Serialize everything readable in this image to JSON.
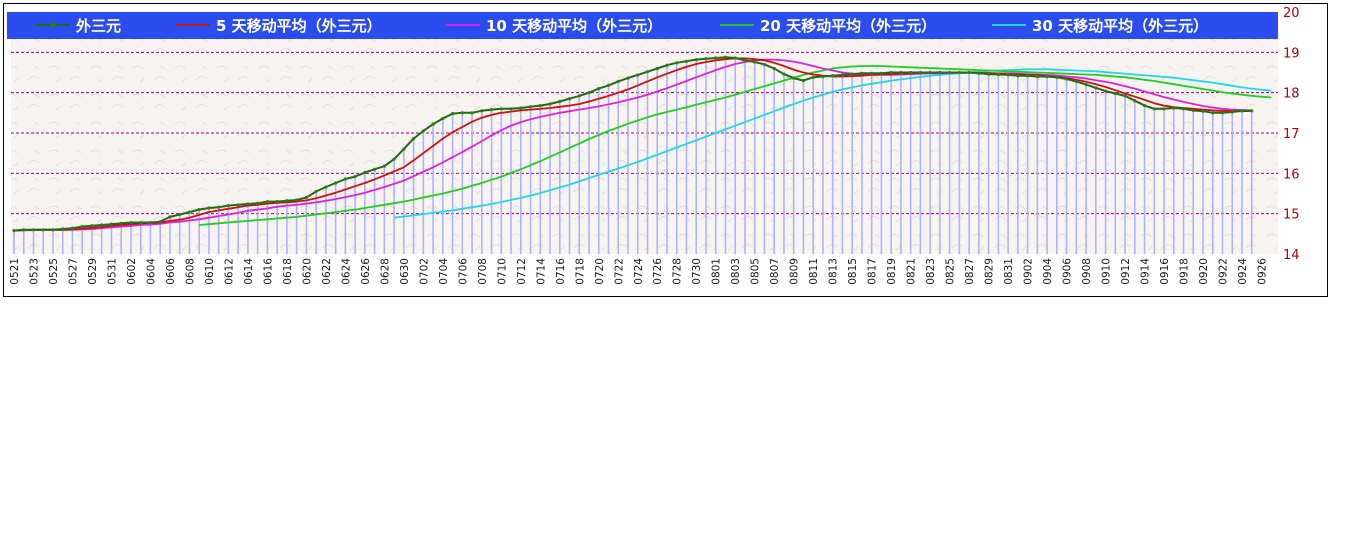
{
  "chart_data": {
    "type": "line",
    "title": "",
    "xlabel": "",
    "ylabel": "",
    "ylim": [
      14,
      20
    ],
    "yticks": [
      14,
      15,
      16,
      17,
      18,
      19,
      20
    ],
    "grid": "horizontal dashed",
    "legend_placement": "top",
    "y_axis_side": "right",
    "x_tick_labels": [
      "0521",
      "0523",
      "0525",
      "0527",
      "0529",
      "0531",
      "0602",
      "0604",
      "0606",
      "0608",
      "0610",
      "0612",
      "0614",
      "0616",
      "0618",
      "0620",
      "0622",
      "0624",
      "0626",
      "0628",
      "0630",
      "0702",
      "0704",
      "0706",
      "0708",
      "0710",
      "0712",
      "0714",
      "0716",
      "0718",
      "0720",
      "0722",
      "0724",
      "0726",
      "0728",
      "0730",
      "0801",
      "0803",
      "0805",
      "0807",
      "0809",
      "0811",
      "0813",
      "0815",
      "0817",
      "0819",
      "0821",
      "0823",
      "0825",
      "0827",
      "0829",
      "0831",
      "0902",
      "0904",
      "0906",
      "0908",
      "0910",
      "0912",
      "0914",
      "0916",
      "0918",
      "0920",
      "0922",
      "0924",
      "0926"
    ],
    "x_points_per_label": 2,
    "colors": {
      "legend_bg": "#2b4df0",
      "grid": "#990099",
      "bars": "#aeb4f2",
      "ytick": "#b30000",
      "markers": "#2e7d14"
    },
    "series": [
      {
        "name": "外三元",
        "color": "#1f6b12",
        "start": 0,
        "values": [
          14.58,
          14.6,
          14.6,
          14.6,
          14.6,
          14.62,
          14.64,
          14.68,
          14.7,
          14.72,
          14.74,
          14.76,
          14.78,
          14.78,
          14.78,
          14.8,
          14.92,
          14.98,
          15.04,
          15.1,
          15.14,
          15.16,
          15.2,
          15.22,
          15.24,
          15.26,
          15.3,
          15.3,
          15.32,
          15.34,
          15.4,
          15.55,
          15.66,
          15.76,
          15.86,
          15.92,
          16.02,
          16.1,
          16.18,
          16.35,
          16.6,
          16.86,
          17.05,
          17.22,
          17.36,
          17.48,
          17.5,
          17.5,
          17.55,
          17.58,
          17.6,
          17.6,
          17.62,
          17.65,
          17.68,
          17.72,
          17.78,
          17.85,
          17.92,
          18.0,
          18.1,
          18.18,
          18.28,
          18.36,
          18.44,
          18.52,
          18.6,
          18.68,
          18.74,
          18.78,
          18.82,
          18.84,
          18.86,
          18.88,
          18.86,
          18.8,
          18.76,
          18.7,
          18.6,
          18.46,
          18.36,
          18.3,
          18.38,
          18.4,
          18.42,
          18.44,
          18.46,
          18.48,
          18.48,
          18.48,
          18.5,
          18.5,
          18.5,
          18.5,
          18.5,
          18.5,
          18.5,
          18.5,
          18.5,
          18.48,
          18.46,
          18.45,
          18.44,
          18.42,
          18.42,
          18.4,
          18.4,
          18.38,
          18.34,
          18.28,
          18.2,
          18.12,
          18.04,
          17.98,
          17.92,
          17.8,
          17.68,
          17.6,
          17.6,
          17.62,
          17.6,
          17.56,
          17.54,
          17.5,
          17.5,
          17.52,
          17.55,
          17.55
        ]
      },
      {
        "name": "5 天移动平均（外三元）",
        "color": "#cc1111",
        "start": 0,
        "values": [
          14.58,
          14.59,
          14.6,
          14.6,
          14.6,
          14.6,
          14.61,
          14.63,
          14.65,
          14.67,
          14.7,
          14.72,
          14.74,
          14.76,
          14.77,
          14.78,
          14.82,
          14.85,
          14.9,
          14.97,
          15.04,
          15.08,
          15.12,
          15.16,
          15.2,
          15.22,
          15.25,
          15.27,
          15.28,
          15.3,
          15.33,
          15.38,
          15.45,
          15.52,
          15.6,
          15.68,
          15.76,
          15.85,
          15.95,
          16.05,
          16.15,
          16.32,
          16.5,
          16.68,
          16.86,
          17.02,
          17.15,
          17.28,
          17.38,
          17.45,
          17.5,
          17.53,
          17.56,
          17.58,
          17.6,
          17.62,
          17.65,
          17.68,
          17.72,
          17.78,
          17.85,
          17.92,
          18.0,
          18.08,
          18.18,
          18.28,
          18.38,
          18.47,
          18.56,
          18.64,
          18.71,
          18.76,
          18.8,
          18.83,
          18.85,
          18.85,
          18.83,
          18.8,
          18.74,
          18.66,
          18.57,
          18.5,
          18.45,
          18.42,
          18.4,
          18.4,
          18.41,
          18.42,
          18.44,
          18.45,
          18.46,
          18.47,
          18.48,
          18.49,
          18.49,
          18.5,
          18.5,
          18.5,
          18.5,
          18.49,
          18.48,
          18.47,
          18.46,
          18.45,
          18.44,
          18.43,
          18.41,
          18.39,
          18.36,
          18.32,
          18.27,
          18.21,
          18.14,
          18.06,
          17.98,
          17.9,
          17.82,
          17.74,
          17.68,
          17.64,
          17.62,
          17.6,
          17.58,
          17.56,
          17.55,
          17.54,
          17.54,
          17.55
        ]
      },
      {
        "name": "10 天移动平均（外三元）",
        "color": "#dd22dd",
        "start": 0,
        "values": [
          14.58,
          14.59,
          14.59,
          14.6,
          14.6,
          14.6,
          14.6,
          14.61,
          14.62,
          14.64,
          14.66,
          14.68,
          14.7,
          14.72,
          14.73,
          14.75,
          14.78,
          14.8,
          14.83,
          14.86,
          14.9,
          14.94,
          14.98,
          15.02,
          15.07,
          15.1,
          15.13,
          15.17,
          15.2,
          15.22,
          15.25,
          15.28,
          15.32,
          15.36,
          15.41,
          15.46,
          15.52,
          15.59,
          15.66,
          15.74,
          15.82,
          15.93,
          16.04,
          16.15,
          16.27,
          16.4,
          16.53,
          16.66,
          16.8,
          16.94,
          17.07,
          17.18,
          17.27,
          17.34,
          17.4,
          17.45,
          17.5,
          17.54,
          17.58,
          17.62,
          17.66,
          17.71,
          17.76,
          17.82,
          17.88,
          17.95,
          18.03,
          18.11,
          18.2,
          18.29,
          18.38,
          18.47,
          18.56,
          18.64,
          18.71,
          18.76,
          18.8,
          18.82,
          18.82,
          18.8,
          18.77,
          18.72,
          18.66,
          18.6,
          18.55,
          18.5,
          18.47,
          18.45,
          18.44,
          18.44,
          18.44,
          18.45,
          18.46,
          18.47,
          18.48,
          18.48,
          18.49,
          18.49,
          18.49,
          18.49,
          18.49,
          18.48,
          18.48,
          18.47,
          18.46,
          18.45,
          18.44,
          18.42,
          18.4,
          18.38,
          18.35,
          18.31,
          18.27,
          18.22,
          18.16,
          18.1,
          18.03,
          17.96,
          17.89,
          17.83,
          17.77,
          17.72,
          17.67,
          17.63,
          17.6,
          17.58,
          17.57,
          17.56
        ]
      },
      {
        "name": "20 天移动平均（外三元）",
        "color": "#22cc22",
        "start": 19,
        "values": [
          14.72,
          14.74,
          14.76,
          14.78,
          14.8,
          14.82,
          14.84,
          14.86,
          14.88,
          14.9,
          14.92,
          14.95,
          14.98,
          15.01,
          15.04,
          15.07,
          15.1,
          15.14,
          15.18,
          15.22,
          15.26,
          15.3,
          15.35,
          15.4,
          15.45,
          15.5,
          15.56,
          15.62,
          15.69,
          15.76,
          15.84,
          15.92,
          16.01,
          16.1,
          16.2,
          16.3,
          16.41,
          16.52,
          16.63,
          16.74,
          16.85,
          16.95,
          17.05,
          17.14,
          17.23,
          17.31,
          17.39,
          17.46,
          17.52,
          17.58,
          17.64,
          17.7,
          17.76,
          17.82,
          17.88,
          17.95,
          18.02,
          18.09,
          18.16,
          18.23,
          18.3,
          18.37,
          18.44,
          18.5,
          18.55,
          18.6,
          18.63,
          18.65,
          18.66,
          18.66,
          18.66,
          18.65,
          18.64,
          18.63,
          18.62,
          18.61,
          18.6,
          18.59,
          18.58,
          18.57,
          18.56,
          18.55,
          18.54,
          18.53,
          18.52,
          18.51,
          18.5,
          18.49,
          18.48,
          18.47,
          18.46,
          18.45,
          18.44,
          18.42,
          18.4,
          18.38,
          18.35,
          18.32,
          18.29,
          18.25,
          18.21,
          18.17,
          18.13,
          18.09,
          18.05,
          18.01,
          17.98,
          17.95,
          17.92,
          17.9,
          17.88
        ]
      },
      {
        "name": "30 天移动平均（外三元）",
        "color": "#22d6e8",
        "start": 39,
        "values": [
          14.9,
          14.93,
          14.96,
          14.99,
          15.02,
          15.05,
          15.08,
          15.12,
          15.16,
          15.2,
          15.24,
          15.29,
          15.34,
          15.39,
          15.45,
          15.51,
          15.58,
          15.65,
          15.72,
          15.8,
          15.88,
          15.96,
          16.04,
          16.12,
          16.2,
          16.28,
          16.37,
          16.46,
          16.55,
          16.64,
          16.73,
          16.82,
          16.91,
          17.0,
          17.09,
          17.18,
          17.27,
          17.36,
          17.45,
          17.54,
          17.63,
          17.72,
          17.8,
          17.88,
          17.95,
          18.02,
          18.08,
          18.13,
          18.18,
          18.22,
          18.26,
          18.3,
          18.33,
          18.36,
          18.39,
          18.42,
          18.44,
          18.46,
          18.48,
          18.5,
          18.52,
          18.54,
          18.55,
          18.56,
          18.57,
          18.58,
          18.58,
          18.58,
          18.57,
          18.56,
          18.55,
          18.54,
          18.53,
          18.51,
          18.49,
          18.47,
          18.45,
          18.43,
          18.41,
          18.39,
          18.37,
          18.34,
          18.31,
          18.28,
          18.25,
          18.21,
          18.17,
          18.13,
          18.1,
          18.07,
          18.05
        ]
      }
    ]
  }
}
